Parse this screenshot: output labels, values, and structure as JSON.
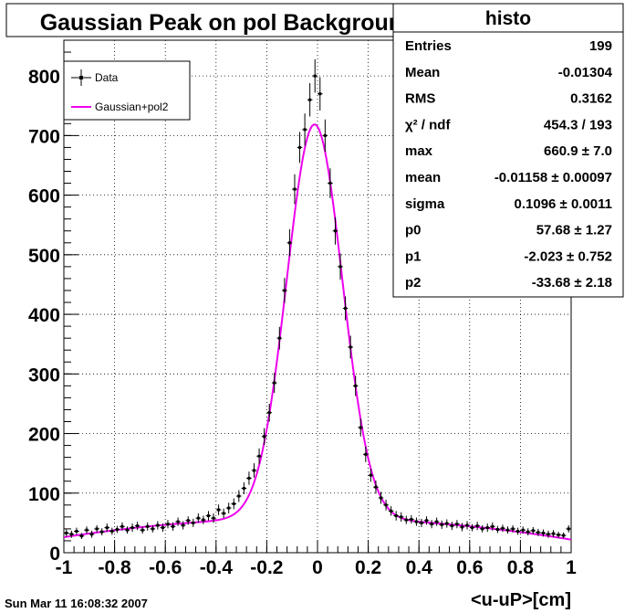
{
  "canvas": {
    "timestamp": "Sun Mar 11 16:08:32 2007"
  },
  "chart_data": {
    "type": "scatter",
    "title": "Gaussian Peak on pol Background",
    "xlabel": "<u-uP>[cm]",
    "ylabel": "",
    "xlim": [
      -1,
      1
    ],
    "ylim": [
      0,
      860
    ],
    "x_ticks": [
      "-1",
      "-0.8",
      "-0.6",
      "-0.4",
      "-0.2",
      "0",
      "0.2",
      "0.4",
      "0.6",
      "0.8",
      "1"
    ],
    "y_ticks": [
      "0",
      "100",
      "200",
      "300",
      "400",
      "500",
      "600",
      "700",
      "800"
    ],
    "grid": true,
    "legend_position": "top-left",
    "series": [
      {
        "name": "Data",
        "style": "points-with-error-bars",
        "color": "#000000",
        "x": [
          -0.99,
          -0.97,
          -0.95,
          -0.93,
          -0.91,
          -0.89,
          -0.87,
          -0.85,
          -0.83,
          -0.81,
          -0.79,
          -0.77,
          -0.75,
          -0.73,
          -0.71,
          -0.69,
          -0.67,
          -0.65,
          -0.63,
          -0.61,
          -0.59,
          -0.57,
          -0.55,
          -0.53,
          -0.51,
          -0.49,
          -0.47,
          -0.45,
          -0.43,
          -0.41,
          -0.39,
          -0.37,
          -0.35,
          -0.33,
          -0.31,
          -0.29,
          -0.27,
          -0.25,
          -0.23,
          -0.21,
          -0.19,
          -0.17,
          -0.15,
          -0.13,
          -0.11,
          -0.09,
          -0.07,
          -0.05,
          -0.03,
          -0.01,
          0.01,
          0.03,
          0.05,
          0.07,
          0.09,
          0.11,
          0.13,
          0.15,
          0.17,
          0.19,
          0.21,
          0.23,
          0.25,
          0.27,
          0.29,
          0.31,
          0.33,
          0.35,
          0.37,
          0.39,
          0.41,
          0.43,
          0.45,
          0.47,
          0.49,
          0.51,
          0.53,
          0.55,
          0.57,
          0.59,
          0.61,
          0.63,
          0.65,
          0.67,
          0.69,
          0.71,
          0.73,
          0.75,
          0.77,
          0.79,
          0.81,
          0.83,
          0.85,
          0.87,
          0.89,
          0.91,
          0.93,
          0.95,
          0.97,
          0.99
        ],
        "y": [
          33,
          31,
          36,
          28,
          38,
          31,
          40,
          35,
          42,
          36,
          39,
          44,
          38,
          42,
          45,
          38,
          44,
          40,
          46,
          42,
          48,
          44,
          52,
          46,
          54,
          50,
          58,
          55,
          62,
          58,
          72,
          66,
          75,
          82,
          95,
          108,
          125,
          138,
          162,
          195,
          235,
          285,
          360,
          440,
          520,
          610,
          680,
          710,
          760,
          800,
          770,
          700,
          620,
          540,
          480,
          410,
          345,
          280,
          210,
          165,
          130,
          110,
          92,
          80,
          70,
          62,
          60,
          55,
          56,
          52,
          50,
          54,
          48,
          52,
          47,
          49,
          45,
          48,
          43,
          46,
          42,
          45,
          40,
          42,
          44,
          39,
          41,
          38,
          40,
          36,
          38,
          35,
          37,
          34,
          33,
          31,
          32,
          30,
          29,
          40
        ],
        "y_err": [
          6,
          6,
          6,
          5,
          6,
          6,
          6,
          6,
          7,
          6,
          6,
          7,
          6,
          7,
          7,
          6,
          7,
          6,
          7,
          7,
          7,
          7,
          7,
          7,
          7,
          7,
          8,
          7,
          8,
          8,
          9,
          8,
          9,
          9,
          10,
          10,
          11,
          12,
          13,
          14,
          15,
          17,
          19,
          21,
          23,
          25,
          26,
          27,
          28,
          28,
          28,
          27,
          25,
          23,
          22,
          20,
          19,
          17,
          15,
          13,
          11,
          11,
          10,
          9,
          8,
          8,
          8,
          7,
          7,
          7,
          7,
          7,
          7,
          7,
          7,
          7,
          7,
          7,
          7,
          7,
          6,
          7,
          6,
          7,
          7,
          6,
          6,
          6,
          6,
          6,
          6,
          6,
          6,
          6,
          6,
          6,
          6,
          5,
          5,
          6
        ]
      },
      {
        "name": "Gaussian+pol2",
        "style": "line",
        "color": "#ee00ee",
        "fit": {
          "max": 660.9,
          "mean": -0.01158,
          "sigma": 0.1096,
          "p0": 57.68,
          "p1": -2.023,
          "p2": -33.68
        }
      }
    ]
  },
  "stats_box": {
    "title": "histo",
    "rows": [
      {
        "label": "Entries",
        "value": "199"
      },
      {
        "label": "Mean",
        "value": "-0.01304"
      },
      {
        "label": "RMS",
        "value": "0.3162"
      },
      {
        "label": "χ² / ndf",
        "value": "454.3 / 193"
      },
      {
        "label": "max",
        "value": "660.9 ± 7.0"
      },
      {
        "label": "mean",
        "value": "-0.01158 ± 0.00097"
      },
      {
        "label": "sigma",
        "value": "0.1096 ± 0.0011"
      },
      {
        "label": "p0",
        "value": "57.68 ± 1.27"
      },
      {
        "label": "p1",
        "value": "-2.023 ± 0.752"
      },
      {
        "label": "p2",
        "value": "-33.68 ± 2.18"
      }
    ]
  }
}
